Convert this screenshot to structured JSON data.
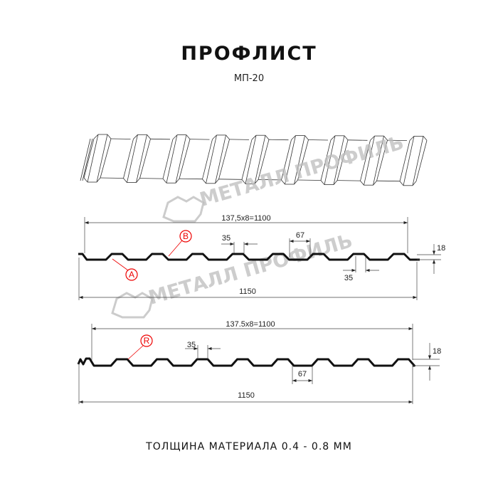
{
  "header": {
    "title": "ПРОФЛИСТ",
    "subtitle": "МП-20"
  },
  "watermark": {
    "text": "МЕТАЛЛ ПРОФИЛЬ"
  },
  "profile_a": {
    "span_label": "137,5x8=1100",
    "total_label": "1150",
    "rib_top": "35",
    "rib_bottom": "35",
    "valley": "67",
    "height": "18",
    "mark_a": "A",
    "mark_b": "B"
  },
  "profile_b": {
    "span_label": "137.5x8=1100",
    "total_label": "1150",
    "rib_top": "35",
    "valley": "67",
    "height": "18",
    "mark_r": "R"
  },
  "footer": {
    "thickness": "ТОЛЩИНА МАТЕРИАЛА 0.4 - 0.8 ММ"
  },
  "colors": {
    "line": "#111111",
    "marker": "#e00000",
    "watermark": "#bdbdbd"
  }
}
